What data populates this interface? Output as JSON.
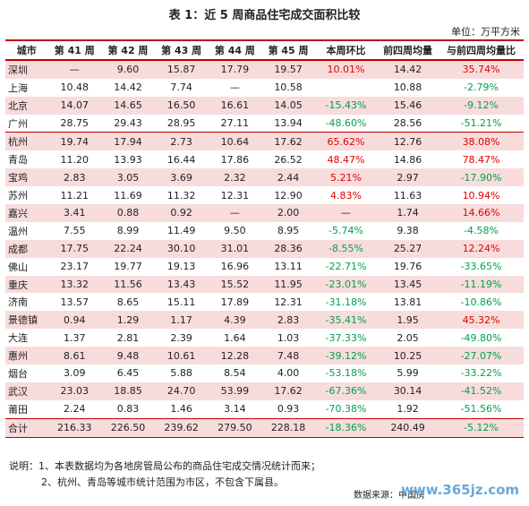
{
  "title": "表 1：近 5 周商品住宅成交面积比较",
  "unit": "单位：万平方米",
  "table": {
    "header": [
      "城市",
      "第 41 周",
      "第 42 周",
      "第 43 周",
      "第 44 周",
      "第 45 周",
      "本周环比",
      "前四周均量",
      "与前四周均量比"
    ],
    "rows": [
      [
        "深圳",
        "—",
        "9.60",
        "15.87",
        "17.79",
        "19.57",
        "10.01%",
        "14.42",
        "35.74%"
      ],
      [
        "上海",
        "10.48",
        "14.42",
        "7.74",
        "—",
        "10.58",
        null,
        "10.88",
        "-2.79%"
      ],
      [
        "北京",
        "14.07",
        "14.65",
        "16.50",
        "16.61",
        "14.05",
        "-15.43%",
        "15.46",
        "-9.12%"
      ],
      [
        "广州",
        "28.75",
        "29.43",
        "28.95",
        "27.11",
        "13.94",
        "-48.60%",
        "28.56",
        "-51.21%"
      ],
      [
        "杭州",
        "19.74",
        "17.94",
        "2.73",
        "10.64",
        "17.62",
        "65.62%",
        "12.76",
        "38.08%"
      ],
      [
        "青岛",
        "11.20",
        "13.93",
        "16.44",
        "17.86",
        "26.52",
        "48.47%",
        "14.86",
        "78.47%"
      ],
      [
        "宝鸡",
        "2.83",
        "3.05",
        "3.69",
        "2.32",
        "2.44",
        "5.21%",
        "2.97",
        "-17.90%"
      ],
      [
        "苏州",
        "11.21",
        "11.69",
        "11.32",
        "12.31",
        "12.90",
        "4.83%",
        "11.63",
        "10.94%"
      ],
      [
        "嘉兴",
        "3.41",
        "0.88",
        "0.92",
        "—",
        "2.00",
        "—",
        "1.74",
        "14.66%"
      ],
      [
        "温州",
        "7.55",
        "8.99",
        "11.49",
        "9.50",
        "8.95",
        "-5.74%",
        "9.38",
        "-4.58%"
      ],
      [
        "成都",
        "17.75",
        "22.24",
        "30.10",
        "31.01",
        "28.36",
        "-8.55%",
        "25.27",
        "12.24%"
      ],
      [
        "佛山",
        "23.17",
        "19.77",
        "19.13",
        "16.96",
        "13.11",
        "-22.71%",
        "19.76",
        "-33.65%"
      ],
      [
        "重庆",
        "13.32",
        "11.56",
        "13.43",
        "15.52",
        "11.95",
        "-23.01%",
        "13.45",
        "-11.19%"
      ],
      [
        "济南",
        "13.57",
        "8.65",
        "15.11",
        "17.89",
        "12.31",
        "-31.18%",
        "13.81",
        "-10.86%"
      ],
      [
        "景德镇",
        "0.94",
        "1.29",
        "1.17",
        "4.39",
        "2.83",
        "-35.41%",
        "1.95",
        "45.32%"
      ],
      [
        "大连",
        "1.37",
        "2.81",
        "2.39",
        "1.64",
        "1.03",
        "-37.33%",
        "2.05",
        "-49.80%"
      ],
      [
        "惠州",
        "8.61",
        "9.48",
        "10.61",
        "12.28",
        "7.48",
        "-39.12%",
        "10.25",
        "-27.07%"
      ],
      [
        "烟台",
        "3.09",
        "6.45",
        "5.88",
        "8.54",
        "4.00",
        "-53.18%",
        "5.99",
        "-33.22%"
      ],
      [
        "武汉",
        "23.03",
        "18.85",
        "24.70",
        "53.99",
        "17.62",
        "-67.36%",
        "30.14",
        "-41.52%"
      ],
      [
        "莆田",
        "2.24",
        "0.83",
        "1.46",
        "3.14",
        "0.93",
        "-70.38%",
        "1.92",
        "-51.56%"
      ],
      [
        "合计",
        "216.33",
        "226.50",
        "239.62",
        "279.50",
        "228.18",
        "-18.36%",
        "240.49",
        "-5.12%"
      ]
    ]
  },
  "notes": [
    "说明：1、本表数据均为各地房管局公布的商品住宅成交情况统计而来；",
    "2、杭州、青岛等城市统计范围为市区，不包含下属县。"
  ],
  "source": "数据来源：中国房",
  "watermark": "www.365jz.com"
}
